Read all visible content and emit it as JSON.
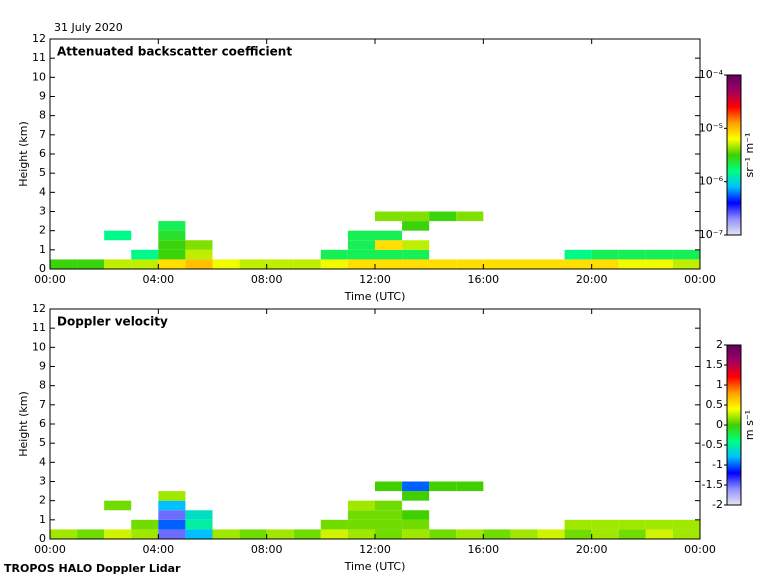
{
  "date": "31 July 2020",
  "footer": "TROPOS HALO Doppler Lidar",
  "chart_data": [
    {
      "type": "heatmap",
      "title": "Attenuated backscatter coefficient",
      "xlabel": "Time (UTC)",
      "ylabel": "Height (km)",
      "colorbar_label": "sr⁻¹ m⁻¹",
      "colorbar_log": true,
      "x_edges": [
        0,
        1,
        2,
        3,
        4,
        5,
        6,
        7,
        8,
        9,
        10,
        11,
        12,
        13,
        14,
        15,
        16,
        17,
        18,
        19,
        20,
        21,
        22,
        23,
        24
      ],
      "y_edges": [
        0,
        0.5,
        1,
        1.5,
        2,
        2.5,
        3
      ],
      "z": [
        [
          3e-06,
          3e-06,
          5e-06,
          5e-06,
          8e-06,
          1e-05,
          6e-06,
          5e-06,
          5e-06,
          5e-06,
          6e-06,
          8e-06,
          8e-06,
          8e-06,
          8e-06,
          8e-06,
          8e-06,
          8e-06,
          8e-06,
          8e-06,
          8e-06,
          6e-06,
          6e-06,
          5e-06
        ],
        [
          null,
          null,
          null,
          1.5e-06,
          3e-06,
          5e-06,
          null,
          null,
          null,
          null,
          2e-06,
          2e-06,
          2e-06,
          2e-06,
          null,
          null,
          null,
          null,
          null,
          1.5e-06,
          2e-06,
          2e-06,
          2e-06,
          2e-06
        ],
        [
          null,
          null,
          null,
          null,
          3e-06,
          4e-06,
          null,
          null,
          null,
          null,
          null,
          2e-06,
          8e-06,
          5e-06,
          null,
          null,
          null,
          null,
          null,
          null,
          null,
          null,
          null,
          null
        ],
        [
          null,
          null,
          1.5e-06,
          null,
          2.5e-06,
          null,
          null,
          null,
          null,
          null,
          null,
          2e-06,
          2e-06,
          null,
          null,
          null,
          null,
          null,
          null,
          null,
          null,
          null,
          null,
          null
        ],
        [
          null,
          null,
          null,
          null,
          2e-06,
          null,
          null,
          null,
          null,
          null,
          null,
          null,
          null,
          3e-06,
          null,
          null,
          null,
          null,
          null,
          null,
          null,
          null,
          null,
          null
        ],
        [
          null,
          null,
          null,
          null,
          null,
          null,
          null,
          null,
          null,
          null,
          null,
          null,
          4e-06,
          4e-06,
          3e-06,
          4e-06,
          null,
          null,
          null,
          null,
          null,
          null,
          null,
          null
        ]
      ],
      "xlim": [
        0,
        24
      ],
      "xticks": [
        {
          "value": 0,
          "label": "00:00"
        },
        {
          "value": 4,
          "label": "04:00"
        },
        {
          "value": 8,
          "label": "08:00"
        },
        {
          "value": 12,
          "label": "12:00"
        },
        {
          "value": 16,
          "label": "16:00"
        },
        {
          "value": 20,
          "label": "20:00"
        },
        {
          "value": 24,
          "label": "00:00"
        }
      ],
      "ylim": [
        0,
        12
      ],
      "yticks": [
        0,
        1,
        2,
        3,
        4,
        5,
        6,
        7,
        8,
        9,
        10,
        11,
        12
      ],
      "clim": [
        1e-07,
        0.0001
      ],
      "cticks": [
        {
          "value": 1e-07,
          "label": "10⁻⁷"
        },
        {
          "value": 1e-06,
          "label": "10⁻⁶"
        },
        {
          "value": 1e-05,
          "label": "10⁻⁵"
        },
        {
          "value": 0.0001,
          "label": "10⁻⁴"
        }
      ],
      "colormap": [
        "#e6e6f0",
        "#9090ff",
        "#0000ff",
        "#00c0ff",
        "#00ff80",
        "#40d000",
        "#ffff00",
        "#ffa000",
        "#ff0000",
        "#a00060",
        "#600060"
      ]
    },
    {
      "type": "heatmap",
      "title": "Doppler velocity",
      "xlabel": "Time (UTC)",
      "ylabel": "Height (km)",
      "colorbar_label": "m s⁻¹",
      "colorbar_log": false,
      "x_edges": [
        0,
        1,
        2,
        3,
        4,
        5,
        6,
        7,
        8,
        9,
        10,
        11,
        12,
        13,
        14,
        15,
        16,
        17,
        18,
        19,
        20,
        21,
        22,
        23,
        24
      ],
      "y_edges": [
        0,
        0.5,
        1,
        1.5,
        2,
        2.5,
        3
      ],
      "z": [
        [
          0.2,
          0.1,
          0.3,
          0.2,
          -1.5,
          -0.8,
          0.2,
          0.1,
          0.2,
          0.1,
          0.3,
          0.2,
          0.1,
          0.2,
          0.1,
          0.2,
          0.1,
          0.2,
          0.3,
          0.1,
          0.2,
          0.1,
          0.3,
          0.2
        ],
        [
          null,
          null,
          null,
          0.1,
          -1,
          -0.5,
          null,
          null,
          null,
          null,
          0.1,
          0.1,
          0.1,
          0.1,
          null,
          null,
          null,
          null,
          null,
          0.2,
          0.2,
          0.2,
          0.2,
          0.2
        ],
        [
          null,
          null,
          null,
          null,
          -1.5,
          -0.6,
          null,
          null,
          null,
          null,
          null,
          0.1,
          0.1,
          0,
          null,
          null,
          null,
          null,
          null,
          null,
          null,
          null,
          null,
          null
        ],
        [
          null,
          null,
          0.1,
          null,
          -0.8,
          null,
          null,
          null,
          null,
          null,
          null,
          0.2,
          0.1,
          null,
          null,
          null,
          null,
          null,
          null,
          null,
          null,
          null,
          null,
          null
        ],
        [
          null,
          null,
          null,
          null,
          0.2,
          null,
          null,
          null,
          null,
          null,
          null,
          null,
          null,
          0,
          null,
          null,
          null,
          null,
          null,
          null,
          null,
          null,
          null,
          null
        ],
        [
          null,
          null,
          null,
          null,
          null,
          null,
          null,
          null,
          null,
          null,
          null,
          null,
          0,
          -1,
          0,
          0,
          null,
          null,
          null,
          null,
          null,
          null,
          null,
          null
        ]
      ],
      "xlim": [
        0,
        24
      ],
      "xticks": [
        {
          "value": 0,
          "label": "00:00"
        },
        {
          "value": 4,
          "label": "04:00"
        },
        {
          "value": 8,
          "label": "08:00"
        },
        {
          "value": 12,
          "label": "12:00"
        },
        {
          "value": 16,
          "label": "16:00"
        },
        {
          "value": 20,
          "label": "20:00"
        },
        {
          "value": 24,
          "label": "00:00"
        }
      ],
      "ylim": [
        0,
        12
      ],
      "yticks": [
        0,
        1,
        2,
        3,
        4,
        5,
        6,
        7,
        8,
        9,
        10,
        11,
        12
      ],
      "clim": [
        -2,
        2
      ],
      "cticks": [
        -2,
        -1.5,
        -1,
        -0.5,
        0,
        0.5,
        1,
        1.5,
        2
      ],
      "colormap": [
        "#e6e6f0",
        "#9090ff",
        "#0000ff",
        "#00c0ff",
        "#00ff80",
        "#40d000",
        "#ffff00",
        "#ffa000",
        "#ff0000",
        "#a00060",
        "#600060"
      ]
    }
  ]
}
